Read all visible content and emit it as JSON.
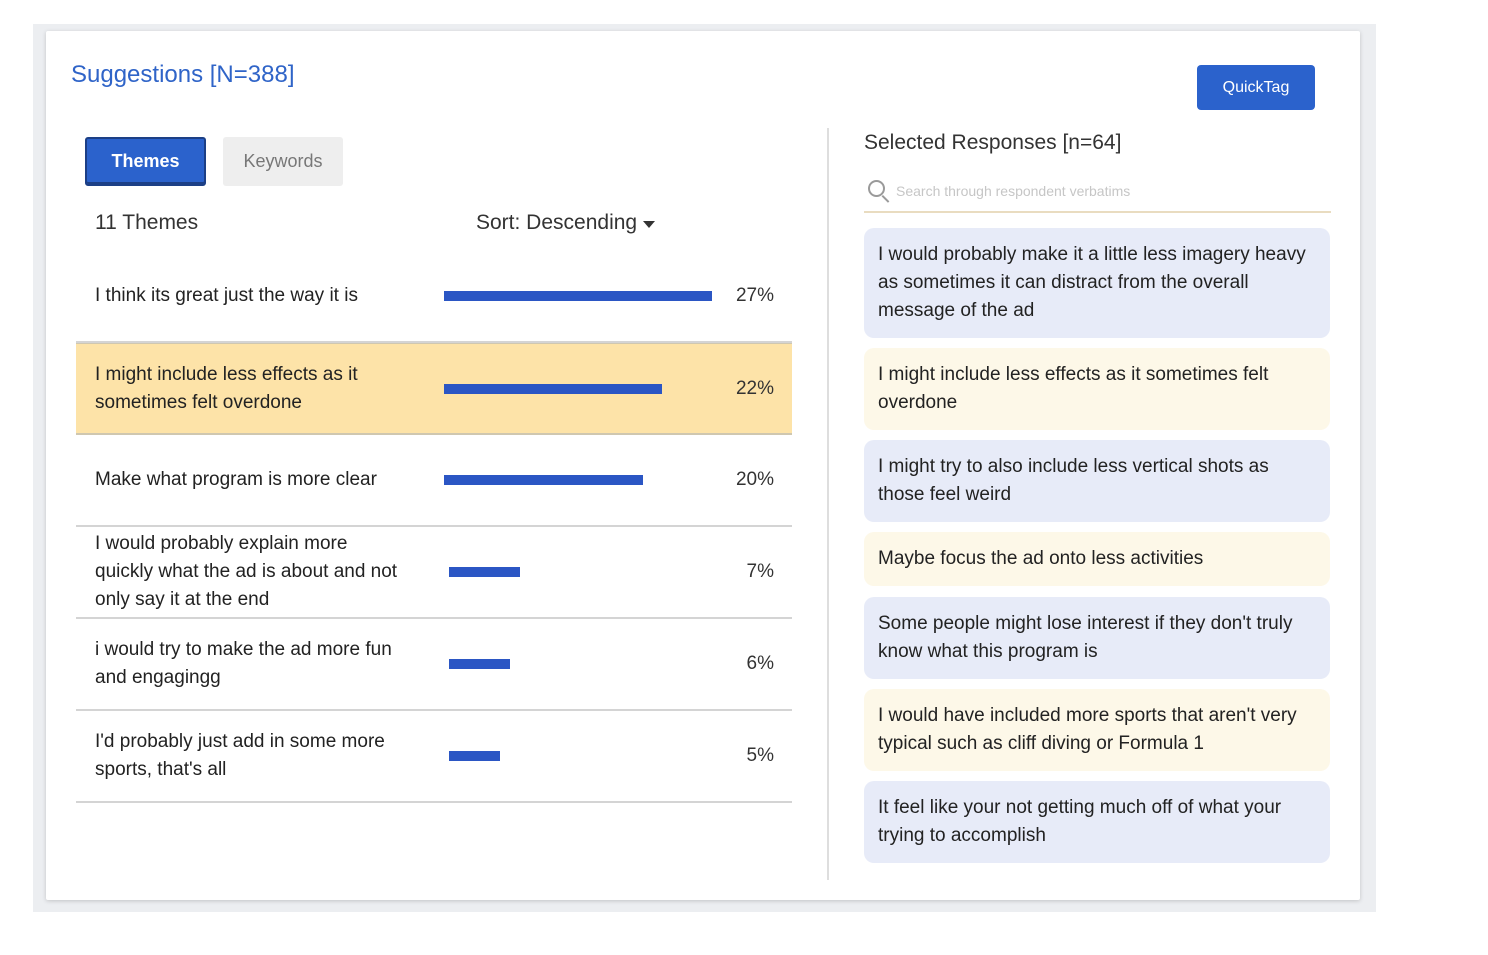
{
  "header": {
    "title": "Suggestions [N=388]",
    "quicktag_label": "QuickTag"
  },
  "tabs": [
    {
      "label": "Themes",
      "active": true
    },
    {
      "label": "Keywords",
      "active": false
    }
  ],
  "themes_panel": {
    "count_label": "11 Themes",
    "sort_label": "Sort: Descending",
    "items": [
      {
        "label": "I think its great just the way it is",
        "percent": "27%",
        "value": 27
      },
      {
        "label": "I might include less effects as it sometimes felt overdone",
        "percent": "22%",
        "value": 22,
        "selected": true
      },
      {
        "label": "Make what program is more clear",
        "percent": "20%",
        "value": 20
      },
      {
        "label": "I would probably explain more quickly what the ad is about and not only say it at the end",
        "percent": "7%",
        "value": 7
      },
      {
        "label": "i would try to make the ad more fun and engagingg",
        "percent": "6%",
        "value": 6
      },
      {
        "label": "I'd probably just add in some more sports, that's all",
        "percent": "5%",
        "value": 5
      }
    ]
  },
  "responses_panel": {
    "title": "Selected Responses [n=64]",
    "search_placeholder": "Search through respondent verbatims",
    "items": [
      {
        "text": "I would probably make it a little less imagery heavy as sometimes it can distract from the overall message of the ad",
        "tone": "blue"
      },
      {
        "text": "I might include less effects as it sometimes felt overdone",
        "tone": "cream"
      },
      {
        "text": "I might try to also include less vertical shots as those feel weird",
        "tone": "blue"
      },
      {
        "text": "Maybe focus the ad onto less activities",
        "tone": "cream"
      },
      {
        "text": "Some people might lose interest if they don't truly know what this program is",
        "tone": "blue"
      },
      {
        "text": "I would have included more sports that aren't very typical such as cliff diving or Formula 1",
        "tone": "cream"
      },
      {
        "text": "It feel like your not getting much off of what your trying to accomplish",
        "tone": "blue"
      }
    ]
  },
  "colors": {
    "accent": "#2b62cc",
    "bar": "#2b56c4",
    "selected_row": "#fde3a8",
    "title": "#2f64c8"
  }
}
